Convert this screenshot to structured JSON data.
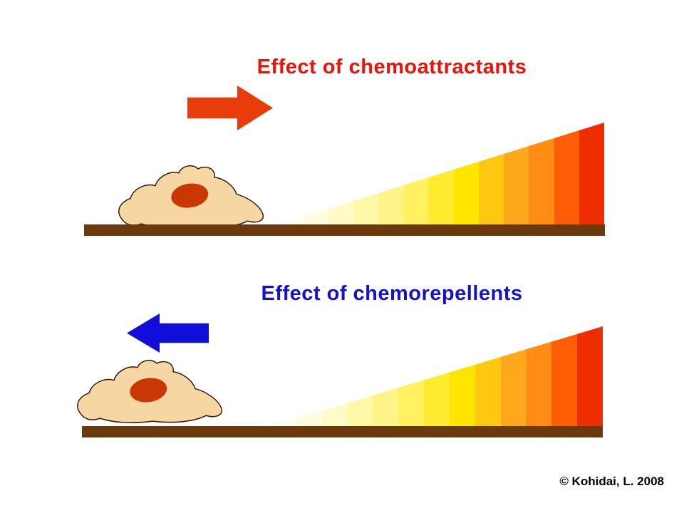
{
  "attractant": {
    "title": "Effect of chemoattractants",
    "title_color": "#e8140a",
    "arrow_color": "#e83c0a",
    "arrow_direction": "right"
  },
  "repellent": {
    "title": "Effect of chemorepellents",
    "title_color": "#1412cc",
    "arrow_color": "#100ed8",
    "arrow_direction": "left"
  },
  "cell": {
    "body_color": "#f6d7a4",
    "outline_color": "#2a1a06",
    "nucleus_color": "#c93804"
  },
  "surface_color": "#6b3a0c",
  "gradient_bands": [
    "#fffef2",
    "#fffce0",
    "#fffbc8",
    "#fff8a8",
    "#fff488",
    "#fff160",
    "#ffec30",
    "#ffe400",
    "#ffc810",
    "#ffa81c",
    "#ff8c14",
    "#ff5e06",
    "#ee2e00"
  ],
  "copyright": "© Kohidai, L. 2008"
}
